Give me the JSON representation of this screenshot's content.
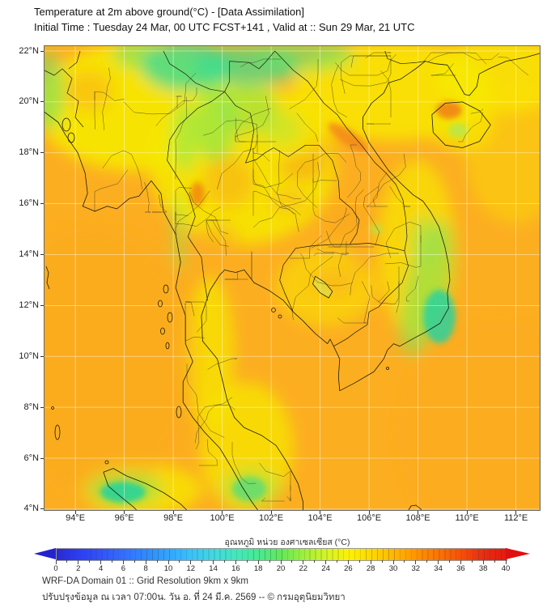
{
  "header": {
    "title_line1": "Temperature at 2m above ground(°C) - [Data Assimilation]",
    "title_line2": "Initial Time : Tuesday 24 Mar, 00 UTC FCST+141 , Valid at :: Sun 29 Mar, 21 UTC"
  },
  "map": {
    "lat_labels": [
      "22°N",
      "20°N",
      "18°N",
      "16°N",
      "14°N",
      "12°N",
      "10°N",
      "8°N",
      "6°N",
      "4°N"
    ],
    "lon_labels": [
      "94°E",
      "96°E",
      "98°E",
      "100°E",
      "102°E",
      "104°E",
      "106°E",
      "108°E",
      "110°E",
      "112°E"
    ]
  },
  "colorbar": {
    "title": "อุณหภูมิ หน่วย องศาเซลเซียส (°C)",
    "unit": "°C",
    "min": 0,
    "max": 40,
    "tick_step": 2,
    "tick_labels": [
      "0",
      "2",
      "4",
      "6",
      "8",
      "10",
      "12",
      "14",
      "16",
      "18",
      "20",
      "22",
      "24",
      "26",
      "28",
      "30",
      "32",
      "34",
      "36",
      "38",
      "40"
    ],
    "arrow_left_color": "#2323CF",
    "arrow_right_color": "#E01010",
    "gradient": [
      {
        "v": 0,
        "color": "#2828DC"
      },
      {
        "v": 2,
        "color": "#2E3EF2"
      },
      {
        "v": 4,
        "color": "#3254FA"
      },
      {
        "v": 6,
        "color": "#336FFE"
      },
      {
        "v": 8,
        "color": "#2F8BFF"
      },
      {
        "v": 10,
        "color": "#30A6FF"
      },
      {
        "v": 12,
        "color": "#3AC2F8"
      },
      {
        "v": 14,
        "color": "#41DADF"
      },
      {
        "v": 16,
        "color": "#44E7BA"
      },
      {
        "v": 18,
        "color": "#47EA8E"
      },
      {
        "v": 20,
        "color": "#63E957"
      },
      {
        "v": 22,
        "color": "#9FEF3C"
      },
      {
        "v": 24,
        "color": "#D6F424"
      },
      {
        "v": 26,
        "color": "#FBF106"
      },
      {
        "v": 28,
        "color": "#FFD800"
      },
      {
        "v": 30,
        "color": "#FFB600"
      },
      {
        "v": 32,
        "color": "#FF9300"
      },
      {
        "v": 34,
        "color": "#FD7203"
      },
      {
        "v": 36,
        "color": "#F44F08"
      },
      {
        "v": 38,
        "color": "#EB2B11"
      },
      {
        "v": 40,
        "color": "#E41A10"
      }
    ]
  },
  "chart_data": {
    "type": "heatmap",
    "title": "Temperature at 2m above ground (°C) - Data Assimilation",
    "x_ticks_deg_east": [
      94,
      96,
      98,
      100,
      102,
      104,
      106,
      108,
      110,
      112
    ],
    "y_ticks_deg_north": [
      22,
      20,
      18,
      16,
      14,
      12,
      10,
      8,
      6,
      4
    ],
    "colorbar_range": [
      0,
      40
    ],
    "colorbar_unit": "°C",
    "field_summary": [
      {
        "area": "northern Myanmar / Laos highlands (96-104E, 20-22N)",
        "approx_temp_c": "18-22",
        "appearance": "green"
      },
      {
        "area": "south-central Vietnam coast (108-109E, 11-15N)",
        "approx_temp_c": "18-22",
        "appearance": "green-teal"
      },
      {
        "area": "northern Sumatra & Malaysia (96E 5N, 101E 5N)",
        "approx_temp_c": "18-20",
        "appearance": "teal"
      },
      {
        "area": "NW Hainan & Laos-Vietnam border ridge",
        "approx_temp_c": "32-34",
        "appearance": "deep orange"
      },
      {
        "area": "most land (Thailand, Indochina)",
        "approx_temp_c": "24-27",
        "appearance": "yellow"
      },
      {
        "area": "open sea",
        "approx_temp_c": "29-31",
        "appearance": "orange"
      }
    ]
  },
  "footer": {
    "line1": "WRF-DA Domain 01 :: Grid Resolution 9km x 9km",
    "line2": "ปรับปรุงข้อมูล ณ เวลา 07:00น. วัน อ. ที่ 24 มี.ค. 2569 -- © กรมอุตุนิยมวิทยา"
  }
}
